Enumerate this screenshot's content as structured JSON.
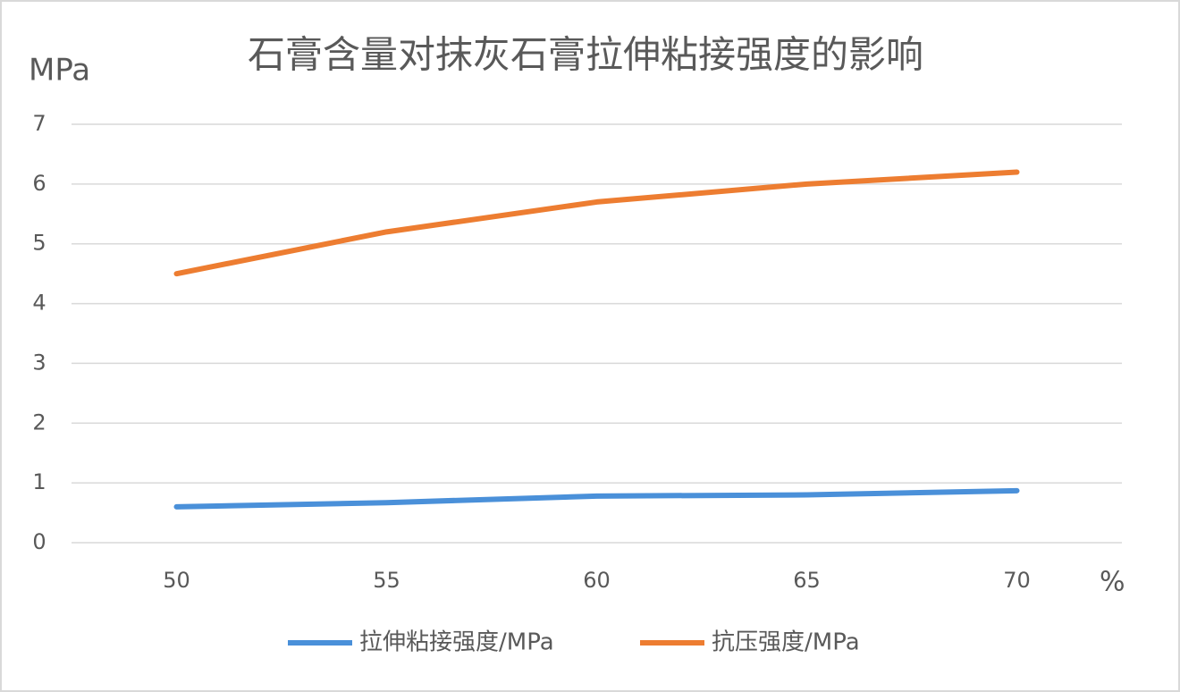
{
  "chart_data": {
    "type": "line",
    "title": "石膏含量对抹灰石膏拉伸粘接强度的影响",
    "y_label": "MPa",
    "x_label": "%",
    "categories": [
      "50",
      "55",
      "60",
      "65",
      "70"
    ],
    "series": [
      {
        "name": "拉伸粘接强度/MPa",
        "color": "#4a90d9",
        "values": [
          0.6,
          0.67,
          0.78,
          0.8,
          0.87
        ]
      },
      {
        "name": "抗压强度/MPa",
        "color": "#ed7d31",
        "values": [
          4.5,
          5.2,
          5.7,
          6.0,
          6.2
        ]
      }
    ],
    "ylim": [
      0,
      7
    ],
    "yticks": [
      0,
      1,
      2,
      3,
      4,
      5,
      6,
      7
    ],
    "grid": true,
    "legend": "bottom"
  }
}
